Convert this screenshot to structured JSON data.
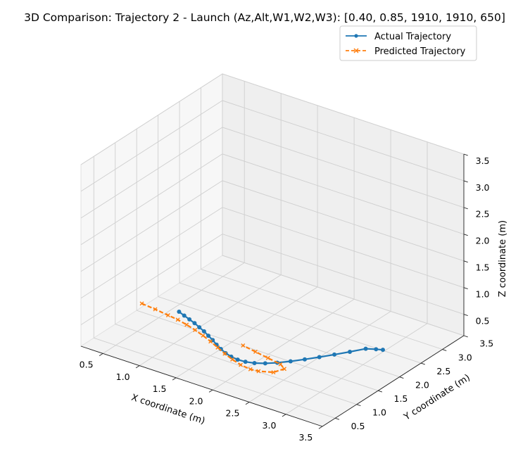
{
  "chart_data": {
    "type": "line3d",
    "title": "3D Comparison: Trajectory 2 - Launch (Az,Alt,W1,W2,W3): [0.40, 0.85, 1910, 1910, 650]",
    "xlabel": "X coordinate (m)",
    "ylabel": "Y coordinate (m)",
    "zlabel": "Z coordinate (m)",
    "xlim": [
      0.2,
      3.5
    ],
    "ylim": [
      0.2,
      3.5
    ],
    "zlim": [
      0.1,
      3.5
    ],
    "x_ticks": [
      "0.5",
      "1.0",
      "1.5",
      "2.0",
      "2.5",
      "3.0",
      "3.5"
    ],
    "y_ticks": [
      "0.5",
      "1.0",
      "1.5",
      "2.0",
      "2.5",
      "3.0",
      "3.5"
    ],
    "z_ticks": [
      "0.5",
      "1.0",
      "1.5",
      "2.0",
      "2.5",
      "3.0",
      "3.5"
    ],
    "grid": true,
    "legend_position": "top-right",
    "series": [
      {
        "name": "Actual Trajectory",
        "color": "#1f77b4",
        "style": "solid",
        "marker": "circle",
        "x": [
          0.75,
          0.85,
          0.95,
          1.05,
          1.15,
          1.25,
          1.35,
          1.45,
          1.55,
          1.65,
          1.75,
          1.85,
          1.95,
          2.05,
          2.15,
          2.25,
          2.35,
          2.45,
          2.55,
          2.65,
          2.75,
          2.85,
          2.95,
          3.05,
          3.12
        ],
        "y": [
          1.55,
          1.5,
          1.45,
          1.4,
          1.34,
          1.28,
          1.21,
          1.14,
          1.06,
          0.99,
          0.93,
          0.89,
          0.87,
          0.88,
          0.92,
          1.0,
          1.11,
          1.25,
          1.41,
          1.58,
          1.76,
          1.95,
          2.15,
          2.22,
          2.26
        ],
        "z": [
          0.3,
          0.3,
          0.3,
          0.3,
          0.3,
          0.3,
          0.3,
          0.3,
          0.3,
          0.3,
          0.3,
          0.3,
          0.3,
          0.3,
          0.3,
          0.3,
          0.3,
          0.3,
          0.3,
          0.3,
          0.3,
          0.3,
          0.3,
          0.3,
          0.3
        ]
      },
      {
        "name": "Predicted Trajectory",
        "color": "#ff7f0e",
        "style": "dashed",
        "marker": "x",
        "x": [
          0.3,
          0.5,
          0.7,
          0.85,
          1.0,
          1.15,
          1.3,
          1.45,
          1.6,
          1.75,
          1.9,
          2.05,
          2.2,
          2.3,
          2.45,
          2.5,
          2.4,
          2.2,
          2.0,
          1.8
        ],
        "y": [
          1.45,
          1.42,
          1.38,
          1.35,
          1.3,
          1.24,
          1.17,
          1.09,
          1.0,
          0.91,
          0.83,
          0.77,
          0.74,
          0.76,
          0.85,
          1.02,
          1.1,
          1.15,
          1.2,
          1.25
        ],
        "z": [
          0.3,
          0.3,
          0.3,
          0.3,
          0.3,
          0.3,
          0.3,
          0.3,
          0.3,
          0.3,
          0.3,
          0.3,
          0.3,
          0.3,
          0.3,
          0.3,
          0.3,
          0.3,
          0.3,
          0.3
        ]
      }
    ]
  }
}
